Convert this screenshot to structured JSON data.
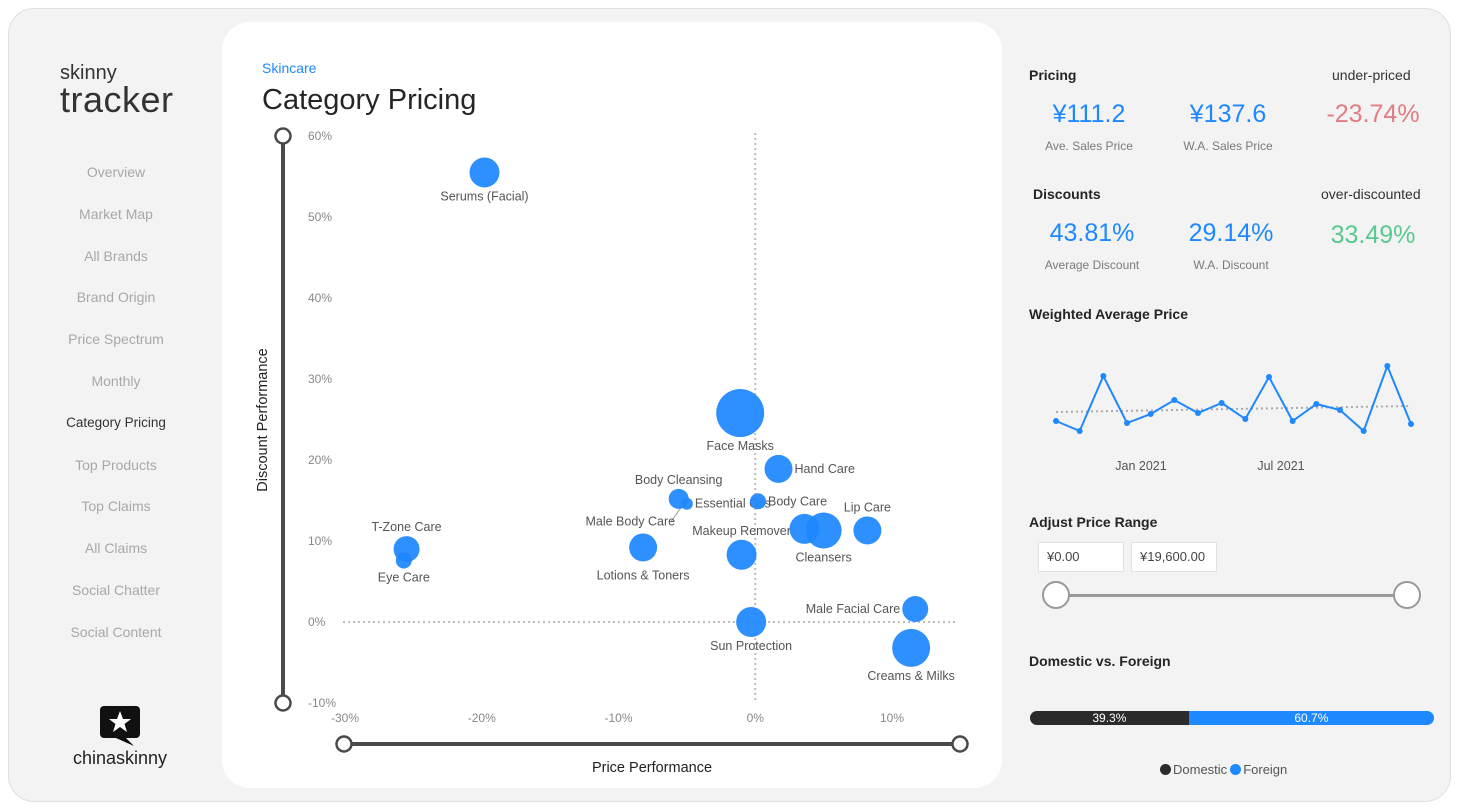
{
  "logo": {
    "line1": "skinny",
    "line2": "tracker"
  },
  "nav": {
    "items": [
      {
        "label": "Overview"
      },
      {
        "label": "Market Map"
      },
      {
        "label": "All Brands"
      },
      {
        "label": "Brand Origin"
      },
      {
        "label": "Price Spectrum"
      },
      {
        "label": "Monthly"
      },
      {
        "label": "Category Pricing"
      },
      {
        "label": "Top Products"
      },
      {
        "label": "Top Claims"
      },
      {
        "label": "All Claims"
      },
      {
        "label": "Social Chatter"
      },
      {
        "label": "Social Content"
      }
    ],
    "active_index": 6
  },
  "brand": {
    "name": "chinaskinny"
  },
  "main": {
    "breadcrumb": "Skincare",
    "title": "Category Pricing"
  },
  "chart_data": {
    "type": "scatter",
    "xlabel": "Price Performance",
    "ylabel": "Discount Performance",
    "xlim": [
      -30,
      15
    ],
    "ylim": [
      -10,
      60
    ],
    "x_ticks": [
      "-30%",
      "-20%",
      "-10%",
      "0%",
      "10%"
    ],
    "x_tick_values": [
      -30,
      -20,
      -10,
      0,
      10
    ],
    "y_ticks": [
      "60%",
      "50%",
      "40%",
      "30%",
      "20%",
      "10%",
      "0%",
      "-10%"
    ],
    "y_tick_values": [
      60,
      50,
      40,
      30,
      20,
      10,
      0,
      -10
    ],
    "reference_lines": {
      "x": 0,
      "y": 0
    },
    "points": [
      {
        "label": "Serums (Facial)",
        "x": -19.8,
        "y": 55.5,
        "size": 15,
        "label_pos": "below"
      },
      {
        "label": "Face Masks",
        "x": -1.1,
        "y": 25.8,
        "size": 24,
        "label_pos": "below"
      },
      {
        "label": "Hand Care",
        "x": 1.7,
        "y": 18.9,
        "size": 14,
        "label_pos": "right"
      },
      {
        "label": "Body Cleansing",
        "x": -5.6,
        "y": 15.2,
        "size": 10,
        "label_pos": "above"
      },
      {
        "label": "Essential Oils",
        "x": -5.0,
        "y": 14.6,
        "size": 6,
        "label_pos": "right"
      },
      {
        "label": "Body Care",
        "x": 0.2,
        "y": 14.9,
        "size": 8,
        "label_pos": "right"
      },
      {
        "label": "Male Body Care",
        "x": -8.2,
        "y": 9.2,
        "size": 14,
        "label_pos": "above-left"
      },
      {
        "label": "Makeup Remover",
        "x": -1.0,
        "y": 8.3,
        "size": 15,
        "label_pos": "above"
      },
      {
        "label": "Cleansers",
        "x": 5.0,
        "y": 11.3,
        "size": 18,
        "label_pos": "below"
      },
      {
        "label": "Body Care 2",
        "x": 3.6,
        "y": 11.5,
        "size": 15,
        "label_pos": "none"
      },
      {
        "label": "Lip Care",
        "x": 8.2,
        "y": 11.3,
        "size": 14,
        "label_pos": "above"
      },
      {
        "label": "T-Zone Care",
        "x": -25.5,
        "y": 9.0,
        "size": 13,
        "label_pos": "above"
      },
      {
        "label": "Eye Care",
        "x": -25.7,
        "y": 7.6,
        "size": 8,
        "label_pos": "below"
      },
      {
        "label": "Lotions & Toners",
        "x": -8.2,
        "y": 9.2,
        "size": 0,
        "label_pos": "below-only"
      },
      {
        "label": "Sun Protection",
        "x": -0.3,
        "y": 0.0,
        "size": 15,
        "label_pos": "below"
      },
      {
        "label": "Male Facial Care",
        "x": 11.7,
        "y": 1.6,
        "size": 13,
        "label_pos": "left"
      },
      {
        "label": "Creams & Milks",
        "x": 11.4,
        "y": -3.2,
        "size": 19,
        "label_pos": "below"
      }
    ]
  },
  "pricing": {
    "header": "Pricing",
    "note": "under-priced",
    "avg_value": "¥111.2",
    "avg_label": "Ave. Sales Price",
    "wa_value": "¥137.6",
    "wa_label": "W.A. Sales Price",
    "perf_value": "-23.74%"
  },
  "discounts": {
    "header": "Discounts",
    "note": "over-discounted",
    "avg_value": "43.81%",
    "avg_label": "Average Discount",
    "wa_value": "29.14%",
    "wa_label": "W.A. Discount",
    "perf_value": "33.49%"
  },
  "wap": {
    "header": "Weighted Average Price",
    "x_labels": [
      "Jan 2021",
      "Jul 2021"
    ],
    "values": [
      421,
      431,
      376,
      423,
      414,
      400,
      413,
      403,
      419,
      377,
      421,
      404,
      410,
      431,
      366,
      424
    ],
    "trend": [
      412,
      406
    ]
  },
  "price_range": {
    "header": "Adjust Price Range",
    "min_value": "¥0.00",
    "max_value": "¥19,600.00",
    "min_fraction": 0,
    "max_fraction": 1
  },
  "dom_foreign": {
    "header": "Domestic vs. Foreign",
    "domestic_pct": 39.3,
    "foreign_pct": 60.7,
    "domestic_text": "39.3%",
    "foreign_text": "60.7%",
    "domestic_label": "Domestic",
    "foreign_label": "Foreign",
    "domestic_color": "#2b2b2b",
    "foreign_color": "#1e88ff"
  }
}
